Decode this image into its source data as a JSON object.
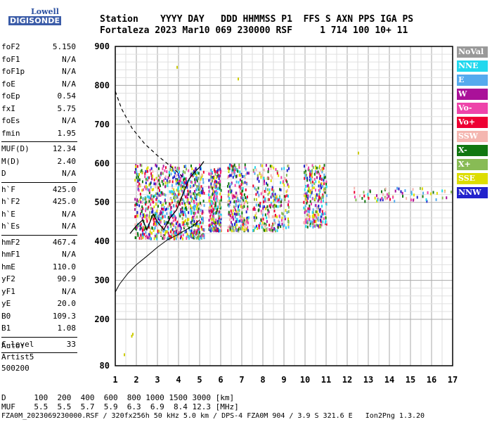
{
  "logo": {
    "top": "Lowell",
    "brand": "DIGISONDE"
  },
  "header": {
    "line1": "Station    YYYY DAY   DDD HHMMSS P1  FFS S AXN PPS IGA PS",
    "line2": "Fortaleza 2023 Mar10 069 230000 RSF     1 714 100 10+ 11"
  },
  "params": [
    {
      "name": "foF2",
      "value": "5.150"
    },
    {
      "name": "foF1",
      "value": "N/A"
    },
    {
      "name": "foF1p",
      "value": "N/A"
    },
    {
      "name": "foE",
      "value": "N/A"
    },
    {
      "name": "foEp",
      "value": "0.54"
    },
    {
      "name": "fxI",
      "value": "5.75"
    },
    {
      "name": "foEs",
      "value": "N/A"
    },
    {
      "name": "fmin",
      "value": "1.95"
    },
    {
      "name": "MUF(D)",
      "value": "12.34"
    },
    {
      "name": "M(D)",
      "value": "2.40"
    },
    {
      "name": "D",
      "value": "N/A"
    },
    {
      "name": "h`F",
      "value": "425.0"
    },
    {
      "name": "h`F2",
      "value": "425.0"
    },
    {
      "name": "h`E",
      "value": "N/A"
    },
    {
      "name": "h`Es",
      "value": "N/A"
    },
    {
      "name": "hmF2",
      "value": "467.4"
    },
    {
      "name": "hmF1",
      "value": "N/A"
    },
    {
      "name": "hmE",
      "value": "110.0"
    },
    {
      "name": "yF2",
      "value": "90.9"
    },
    {
      "name": "yF1",
      "value": "N/A"
    },
    {
      "name": "yE",
      "value": "20.0"
    },
    {
      "name": "B0",
      "value": "109.3"
    },
    {
      "name": "B1",
      "value": "1.08"
    },
    {
      "name": "C-level",
      "value": "33"
    }
  ],
  "auto": {
    "line1": "Auto:",
    "line2": "Artist5",
    "line3": "500200"
  },
  "legend": [
    {
      "label": "NoVal",
      "color": "#999999"
    },
    {
      "label": "NNE",
      "color": "#22d8ee"
    },
    {
      "label": "E",
      "color": "#55aaee"
    },
    {
      "label": "W",
      "color": "#aa1199"
    },
    {
      "label": "Vo-",
      "color": "#ee44aa"
    },
    {
      "label": "Vo+",
      "color": "#ee0033"
    },
    {
      "label": "SSW",
      "color": "#f4b6b0"
    },
    {
      "label": "X-",
      "color": "#117711"
    },
    {
      "label": "X+",
      "color": "#88bb55"
    },
    {
      "label": "SSE",
      "color": "#dddd00"
    },
    {
      "label": "NNW",
      "color": "#2222cc"
    }
  ],
  "footer": {
    "line1": "D      100  200  400  600  800 1000 1500 3000 [km]",
    "line2": "MUF    5.5  5.5  5.7  5.9  6.3  6.9  8.4 12.3 [MHz]",
    "line3": "FZA0M_2023069230000.RSF / 320fx256h 50 kHz 5.0 km / DPS-4 FZA0M 904 / 3.9 S 321.6 E   Ion2Png 1.3.20"
  },
  "chart_data": {
    "type": "scatter",
    "title": "",
    "xlabel": "",
    "ylabel": "",
    "xlim": [
      1,
      17
    ],
    "ylim": [
      80,
      900
    ],
    "xticks": [
      1,
      2,
      3,
      4,
      5,
      6,
      7,
      8,
      9,
      10,
      11,
      12,
      13,
      14,
      15,
      16,
      17
    ],
    "yticks": [
      80,
      200,
      300,
      400,
      500,
      600,
      700,
      800,
      900
    ],
    "profile_curve": {
      "x": [
        1.0,
        1.2,
        1.6,
        2.0,
        2.5,
        3.0,
        3.5,
        3.9,
        4.3,
        4.7,
        5.0
      ],
      "y": [
        270,
        290,
        318,
        340,
        362,
        385,
        405,
        415,
        428,
        440,
        455
      ]
    },
    "profile_dashed_upper": {
      "x": [
        1.0,
        1.3,
        1.8,
        2.4,
        3.0,
        3.5,
        3.9,
        4.3
      ],
      "y": [
        785,
        740,
        690,
        650,
        620,
        598,
        580,
        560
      ]
    },
    "trace_line": {
      "x": [
        1.7,
        2.0,
        2.3,
        2.5,
        2.8,
        3.0,
        3.3,
        3.6,
        3.9,
        4.2,
        4.5,
        4.8,
        5.0,
        5.2
      ],
      "y": [
        420,
        440,
        455,
        430,
        470,
        450,
        430,
        460,
        480,
        520,
        560,
        580,
        590,
        605
      ]
    },
    "echo_clusters": [
      {
        "x": [
          1.9,
          5.2
        ],
        "y": [
          410,
          600
        ],
        "density": "high"
      },
      {
        "x": [
          5.4,
          6.0
        ],
        "y": [
          430,
          590
        ],
        "density": "medium"
      },
      {
        "x": [
          6.3,
          7.3
        ],
        "y": [
          430,
          600
        ],
        "density": "medium"
      },
      {
        "x": [
          7.5,
          9.2
        ],
        "y": [
          430,
          600
        ],
        "density": "medium"
      },
      {
        "x": [
          9.9,
          11.0
        ],
        "y": [
          440,
          600
        ],
        "density": "medium"
      },
      {
        "x": [
          12.3,
          16.9
        ],
        "y": [
          505,
          540
        ],
        "density": "low"
      }
    ],
    "isolated_points": [
      {
        "x": 1.4,
        "y": 112
      },
      {
        "x": 1.75,
        "y": 160
      },
      {
        "x": 1.8,
        "y": 165
      },
      {
        "x": 3.9,
        "y": 850
      },
      {
        "x": 6.8,
        "y": 820
      },
      {
        "x": 12.5,
        "y": 630
      }
    ]
  }
}
